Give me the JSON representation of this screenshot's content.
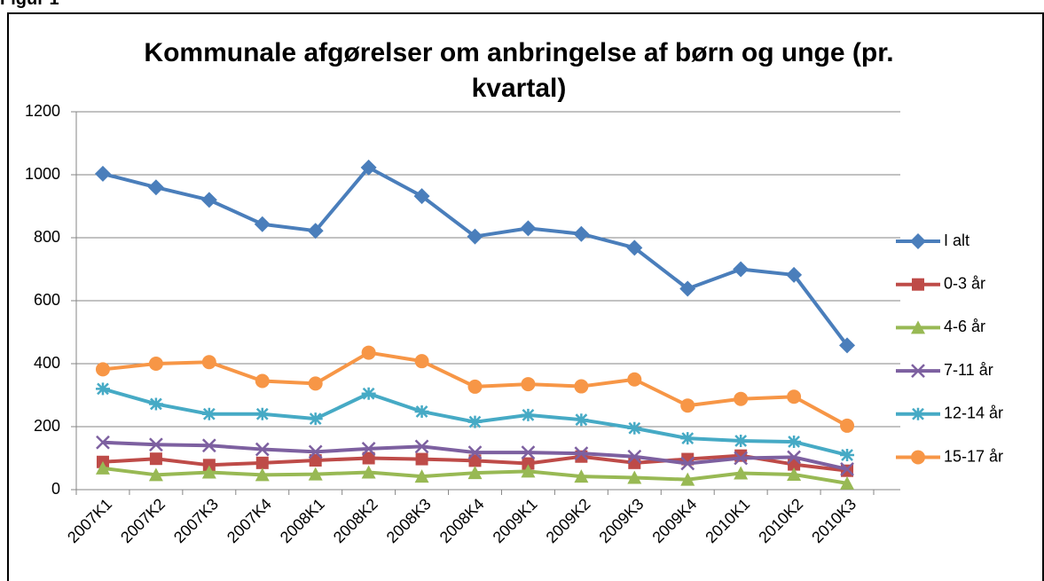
{
  "figure_label": "Figur 1",
  "chart_data": {
    "type": "line",
    "title": "Kommunale afgørelser om anbringelse af børn og unge (pr. kvartal)",
    "categories": [
      "2007K1",
      "2007K2",
      "2007K3",
      "2007K4",
      "2008K1",
      "2008K2",
      "2008K3",
      "2008K4",
      "2009K1",
      "2009K2",
      "2009K3",
      "2009K4",
      "2010K1",
      "2010K2",
      "2010K3"
    ],
    "series": [
      {
        "name": "I alt",
        "color": "#4a7ebb",
        "marker": "diamond",
        "values": [
          1003,
          960,
          920,
          843,
          822,
          1023,
          932,
          804,
          830,
          812,
          768,
          638,
          700,
          682,
          458
        ]
      },
      {
        "name": "0-3 år",
        "color": "#be4b48",
        "marker": "square",
        "values": [
          88,
          98,
          78,
          85,
          93,
          100,
          97,
          92,
          83,
          105,
          85,
          97,
          108,
          80,
          60
        ]
      },
      {
        "name": "4-6 år",
        "color": "#98b954",
        "marker": "triangle",
        "values": [
          68,
          47,
          55,
          47,
          49,
          55,
          42,
          53,
          58,
          42,
          38,
          32,
          52,
          48,
          20
        ]
      },
      {
        "name": "7-11 år",
        "color": "#7d60a0",
        "marker": "x",
        "values": [
          150,
          143,
          140,
          128,
          120,
          130,
          137,
          118,
          118,
          115,
          105,
          83,
          100,
          103,
          65
        ]
      },
      {
        "name": "12-14 år",
        "color": "#46aac5",
        "marker": "star",
        "values": [
          320,
          272,
          240,
          240,
          225,
          305,
          248,
          215,
          237,
          222,
          195,
          163,
          155,
          152,
          110
        ]
      },
      {
        "name": "15-17 år",
        "color": "#f79646",
        "marker": "circle",
        "values": [
          382,
          400,
          405,
          345,
          337,
          435,
          408,
          327,
          335,
          328,
          350,
          267,
          288,
          295,
          203
        ]
      }
    ],
    "ylim": [
      0,
      1200
    ],
    "yticks": [
      0,
      200,
      400,
      600,
      800,
      1000,
      1200
    ],
    "grid": true,
    "legend": "right"
  }
}
